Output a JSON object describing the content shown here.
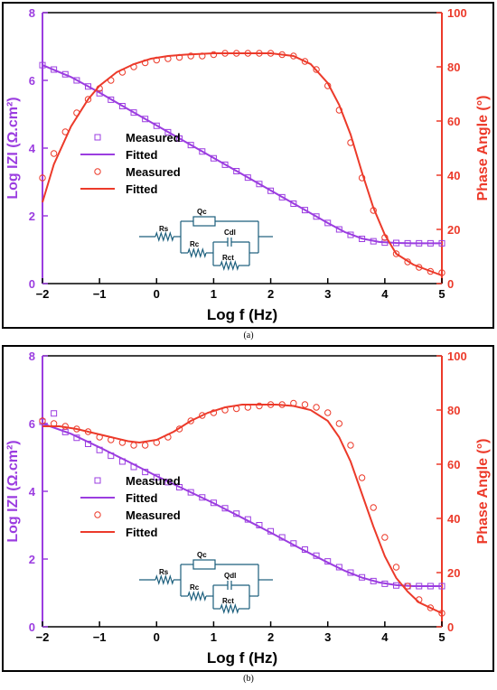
{
  "colors": {
    "impedance": "#9B3DE0",
    "phase": "#EC3A2A",
    "circuit": "#1B5E7C",
    "axis": "#000000"
  },
  "panel_labels": [
    "(a)",
    "(b)"
  ],
  "chart_data": [
    {
      "type": "line",
      "panel": "(a)",
      "xlabel": "Log f (Hz)",
      "ylabel_left": "Log IZI (Ω.cm²)",
      "ylabel_right": "Phase Angle (°)",
      "xlim": [
        -2,
        5
      ],
      "ylim_left": [
        0,
        8
      ],
      "ylim_right": [
        0,
        100
      ],
      "x_ticks": [
        -2,
        -1,
        0,
        1,
        2,
        3,
        4,
        5
      ],
      "y_left_ticks": [
        0,
        2,
        4,
        6,
        8
      ],
      "y_right_ticks": [
        0,
        20,
        40,
        60,
        80,
        100
      ],
      "legend": [
        "Measured",
        "Fitted",
        "Measured",
        "Fitted"
      ],
      "circuit_labels": [
        "Rs",
        "Qc",
        "Cdl",
        "Rc",
        "Rct"
      ],
      "series": [
        {
          "name": "Measured",
          "axis": "left",
          "kind": "scatter-square",
          "x": [
            -2,
            -1.8,
            -1.6,
            -1.4,
            -1.2,
            -1,
            -0.8,
            -0.6,
            -0.4,
            -0.2,
            0,
            0.2,
            0.4,
            0.6,
            0.8,
            1,
            1.2,
            1.4,
            1.6,
            1.8,
            2,
            2.2,
            2.4,
            2.6,
            2.8,
            3,
            3.2,
            3.4,
            3.6,
            3.8,
            4,
            4.2,
            4.4,
            4.6,
            4.8,
            5
          ],
          "y": [
            6.45,
            6.32,
            6.18,
            6.0,
            5.82,
            5.62,
            5.43,
            5.24,
            5.05,
            4.86,
            4.66,
            4.47,
            4.28,
            4.09,
            3.9,
            3.7,
            3.51,
            3.32,
            3.13,
            2.94,
            2.74,
            2.55,
            2.36,
            2.17,
            1.98,
            1.79,
            1.6,
            1.44,
            1.32,
            1.25,
            1.21,
            1.2,
            1.19,
            1.19,
            1.19,
            1.19
          ]
        },
        {
          "name": "Fitted",
          "axis": "left",
          "kind": "line",
          "x": [
            -2,
            -1.5,
            -1,
            -0.5,
            0,
            0.5,
            1,
            1.5,
            2,
            2.5,
            3,
            3.3,
            3.6,
            3.9,
            4.2,
            4.5,
            5
          ],
          "y": [
            6.45,
            6.1,
            5.64,
            5.15,
            4.67,
            4.19,
            3.71,
            3.23,
            2.75,
            2.27,
            1.79,
            1.52,
            1.33,
            1.23,
            1.2,
            1.19,
            1.19
          ]
        },
        {
          "name": "Measured",
          "axis": "right",
          "kind": "scatter-circle",
          "x": [
            -2,
            -1.8,
            -1.6,
            -1.4,
            -1.2,
            -1,
            -0.8,
            -0.6,
            -0.4,
            -0.2,
            0,
            0.2,
            0.4,
            0.6,
            0.8,
            1,
            1.2,
            1.4,
            1.6,
            1.8,
            2,
            2.2,
            2.4,
            2.6,
            2.8,
            3,
            3.2,
            3.4,
            3.6,
            3.8,
            4,
            4.2,
            4.4,
            4.6,
            4.8,
            5
          ],
          "y": [
            39,
            48,
            56,
            63,
            68,
            72,
            75,
            78,
            80,
            81.5,
            82.5,
            83,
            83.5,
            84,
            84,
            84.5,
            85,
            85,
            85,
            85,
            85,
            84.5,
            84,
            82,
            79,
            73,
            64,
            52,
            39,
            27,
            17,
            11,
            8,
            6,
            4.5,
            4
          ]
        },
        {
          "name": "Fitted",
          "axis": "right",
          "kind": "line",
          "x": [
            -2,
            -1.8,
            -1.5,
            -1.2,
            -1,
            -0.7,
            -0.4,
            -0.1,
            0.2,
            0.5,
            1,
            1.5,
            2,
            2.4,
            2.7,
            3,
            3.2,
            3.4,
            3.6,
            3.8,
            4,
            4.2,
            4.5,
            5
          ],
          "y": [
            30,
            44,
            58,
            68,
            73,
            78,
            81,
            83,
            84,
            84.5,
            85,
            85,
            85,
            84,
            81,
            74,
            66,
            55,
            41,
            28,
            18,
            11,
            7,
            3
          ]
        }
      ]
    },
    {
      "type": "line",
      "panel": "(b)",
      "xlabel": "Log f (Hz)",
      "ylabel_left": "Log IZI (Ω.cm²)",
      "ylabel_right": "Phase Angle (°)",
      "xlim": [
        -2,
        5
      ],
      "ylim_left": [
        0,
        8
      ],
      "ylim_right": [
        0,
        100
      ],
      "x_ticks": [
        -2,
        -1,
        0,
        1,
        2,
        3,
        4,
        5
      ],
      "y_left_ticks": [
        0,
        2,
        4,
        6,
        8
      ],
      "y_right_ticks": [
        0,
        20,
        40,
        60,
        80,
        100
      ],
      "legend": [
        "Measured",
        "Fitted",
        "Measured",
        "Fitted"
      ],
      "circuit_labels": [
        "Rs",
        "Qc",
        "Qdl",
        "Rc",
        "Rct"
      ],
      "series": [
        {
          "name": "Measured",
          "axis": "left",
          "kind": "scatter-square",
          "x": [
            -2,
            -1.8,
            -1.6,
            -1.4,
            -1.2,
            -1,
            -0.8,
            -0.6,
            -0.4,
            -0.2,
            0,
            0.2,
            0.4,
            0.6,
            0.8,
            1,
            1.2,
            1.4,
            1.6,
            1.8,
            2,
            2.2,
            2.4,
            2.6,
            2.8,
            3,
            3.2,
            3.4,
            3.6,
            3.8,
            4,
            4.2,
            4.4,
            4.6,
            4.8,
            5
          ],
          "y": [
            6.05,
            6.3,
            5.75,
            5.58,
            5.4,
            5.22,
            5.05,
            4.88,
            4.72,
            4.57,
            4.42,
            4.27,
            4.12,
            3.97,
            3.82,
            3.66,
            3.5,
            3.34,
            3.17,
            3.0,
            2.82,
            2.64,
            2.46,
            2.28,
            2.1,
            1.93,
            1.76,
            1.6,
            1.46,
            1.35,
            1.27,
            1.22,
            1.2,
            1.2,
            1.2,
            1.2
          ]
        },
        {
          "name": "Fitted",
          "axis": "left",
          "kind": "line",
          "x": [
            -2,
            -1.5,
            -1,
            -0.5,
            0,
            0.5,
            1,
            1.5,
            2,
            2.5,
            3,
            3.3,
            3.6,
            3.9,
            4.2,
            4.5,
            5
          ],
          "y": [
            6.0,
            5.7,
            5.3,
            4.88,
            4.45,
            4.05,
            3.65,
            3.22,
            2.78,
            2.33,
            1.9,
            1.65,
            1.45,
            1.31,
            1.23,
            1.2,
            1.2
          ]
        },
        {
          "name": "Measured",
          "axis": "right",
          "kind": "scatter-circle",
          "x": [
            -2,
            -1.8,
            -1.6,
            -1.4,
            -1.2,
            -1,
            -0.8,
            -0.6,
            -0.4,
            -0.2,
            0,
            0.2,
            0.4,
            0.6,
            0.8,
            1,
            1.2,
            1.4,
            1.6,
            1.8,
            2,
            2.2,
            2.4,
            2.6,
            2.8,
            3,
            3.2,
            3.4,
            3.6,
            3.8,
            4,
            4.2,
            4.4,
            4.6,
            4.8,
            5
          ],
          "y": [
            76,
            75,
            74,
            73,
            72,
            70,
            69,
            68,
            67,
            67,
            68,
            70,
            73,
            76,
            78,
            79,
            80,
            80.5,
            81,
            81.5,
            82,
            82,
            82.5,
            82,
            81,
            79,
            75,
            67,
            55,
            44,
            33,
            22,
            15,
            10,
            7,
            5
          ]
        },
        {
          "name": "Fitted",
          "axis": "right",
          "kind": "line",
          "x": [
            -2,
            -1.7,
            -1.4,
            -1.1,
            -0.8,
            -0.5,
            -0.3,
            0,
            0.3,
            0.6,
            0.9,
            1.2,
            1.5,
            1.8,
            2.1,
            2.4,
            2.7,
            3,
            3.2,
            3.4,
            3.6,
            3.8,
            4,
            4.2,
            4.4,
            4.6,
            5
          ],
          "y": [
            74,
            74,
            73,
            71.5,
            70,
            68.5,
            68,
            69,
            72,
            76,
            79,
            81,
            82,
            82,
            82,
            81.5,
            80,
            76,
            70,
            61,
            49,
            37,
            26,
            18,
            13,
            9,
            5
          ]
        }
      ]
    }
  ]
}
